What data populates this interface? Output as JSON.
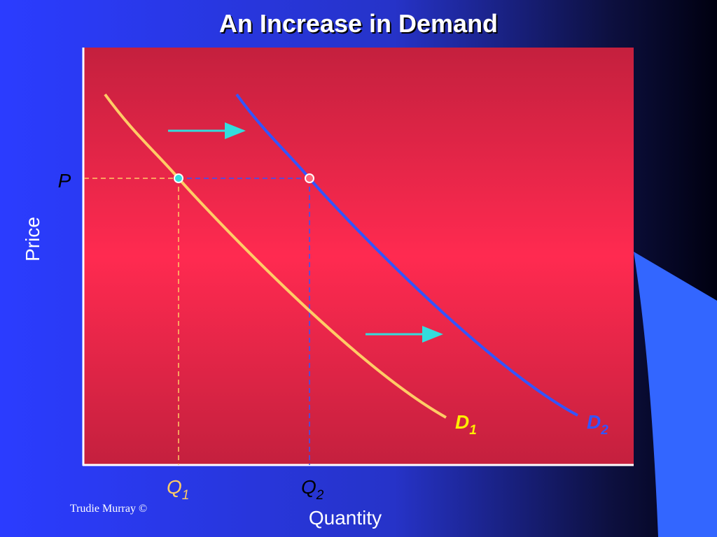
{
  "header": {
    "title": "An Increase in Demand"
  },
  "axes": {
    "y_label": "Price",
    "x_label": "Quantity",
    "price_mark": "P"
  },
  "quantities": [
    {
      "base": "Q",
      "sub": "1"
    },
    {
      "base": "Q",
      "sub": "2"
    }
  ],
  "curves": [
    {
      "base": "D",
      "sub": "1"
    },
    {
      "base": "D",
      "sub": "2"
    }
  ],
  "footer": {
    "credit": "Trudie Murray ©"
  }
}
